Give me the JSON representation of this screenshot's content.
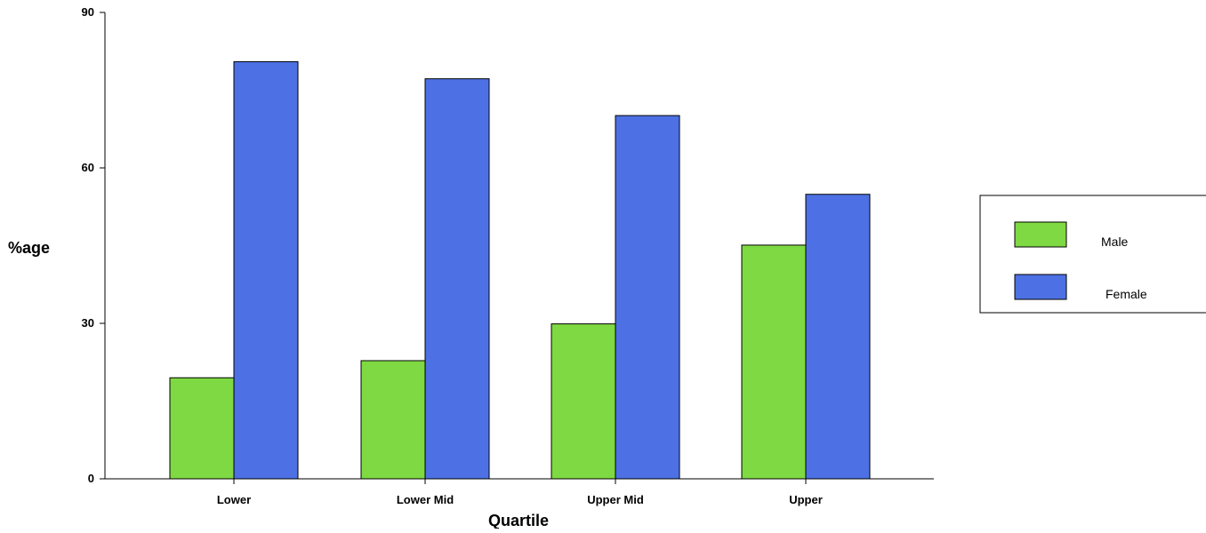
{
  "chart_data": {
    "type": "bar",
    "categories": [
      "Lower",
      "Lower Mid",
      "Upper Mid",
      "Upper"
    ],
    "series": [
      {
        "name": "Male",
        "values": [
          19.5,
          22.8,
          29.9,
          45.1
        ],
        "color": "#7ed942"
      },
      {
        "name": "Female",
        "values": [
          80.5,
          77.2,
          70.1,
          54.9
        ],
        "color": "#4d71e4"
      }
    ],
    "title": "",
    "xlabel": "Quartile",
    "ylabel": "%age",
    "ylim": [
      0,
      90
    ],
    "yticks": [
      0,
      30,
      60,
      90
    ],
    "grid": false,
    "legend_position": "right"
  }
}
